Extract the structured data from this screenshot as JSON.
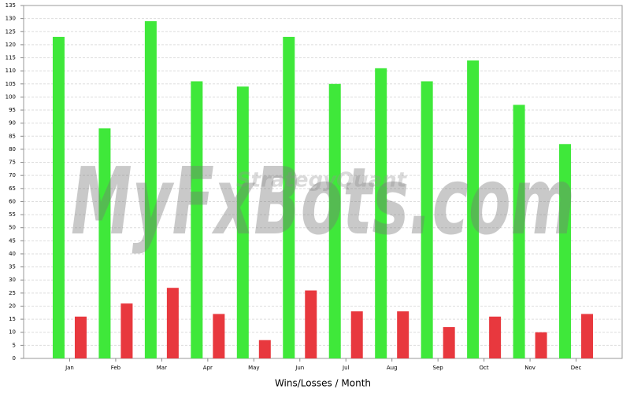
{
  "chart_data": {
    "type": "bar",
    "x_label": "Wins/Losses / Month",
    "watermark": "MyFxBots.com",
    "watermark_small": "StrategyQuant",
    "categories": [
      "Jan",
      "Feb",
      "Mar",
      "Apr",
      "May",
      "Jun",
      "Jul",
      "Aug",
      "Sep",
      "Oct",
      "Nov",
      "Dec"
    ],
    "series": [
      {
        "color": "#3fe83a",
        "values": [
          123,
          88,
          129,
          106,
          104,
          123,
          105,
          111,
          106,
          114,
          97,
          82
        ]
      },
      {
        "color": "#e8383e",
        "values": [
          16,
          21,
          27,
          17,
          7,
          26,
          18,
          18,
          12,
          16,
          10,
          17
        ]
      }
    ],
    "ylim": [
      0,
      135
    ],
    "yticks": [
      0,
      5,
      10,
      15,
      20,
      25,
      30,
      35,
      40,
      45,
      50,
      55,
      60,
      65,
      70,
      75,
      80,
      85,
      90,
      95,
      100,
      105,
      110,
      115,
      120,
      125,
      130,
      135
    ],
    "grid": true
  }
}
